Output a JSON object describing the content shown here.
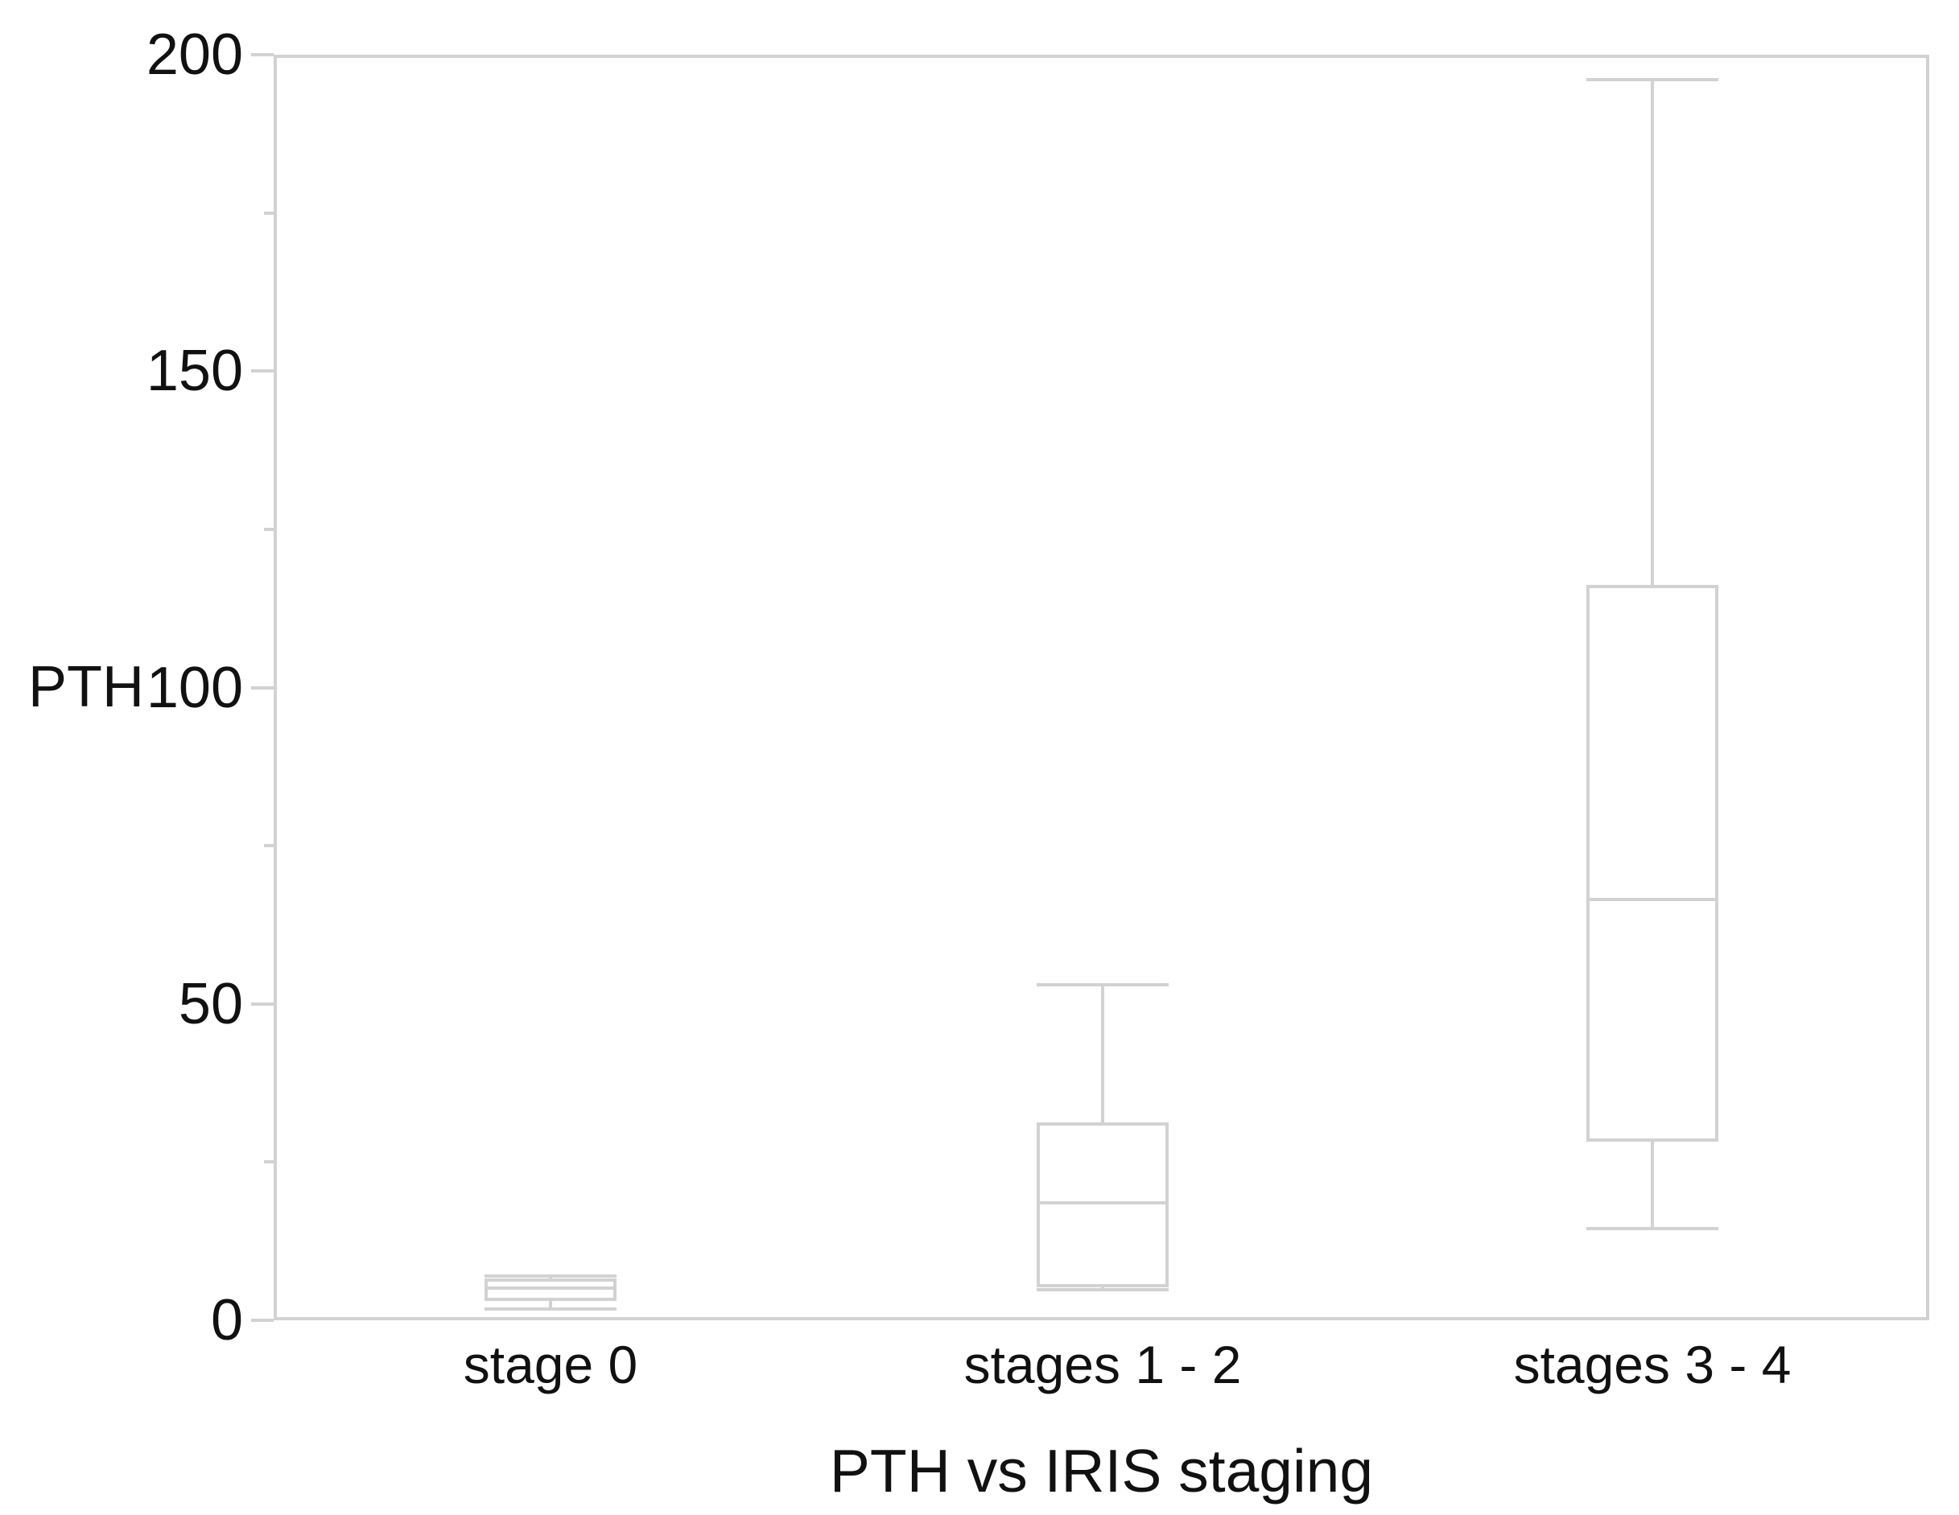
{
  "chart_data": {
    "type": "boxplot",
    "title": "PTH vs IRIS staging",
    "ylabel": "PTH",
    "ylim": [
      0,
      200
    ],
    "y_ticks": [
      "0",
      "50",
      "100",
      "150",
      "200"
    ],
    "y_minor_ticks": [
      25,
      75,
      125,
      175
    ],
    "grid": false,
    "frame": true,
    "legend": "none",
    "categories": [
      "stage 0",
      "stages 1 - 2",
      "stages 3 - 4"
    ],
    "boxes": [
      {
        "label": "stage 0",
        "min": 1.8,
        "q1": 3.3,
        "median": 5.1,
        "q3": 6.4,
        "max": 7
      },
      {
        "label": "stages 1 - 2",
        "min": 4.8,
        "q1": 5.5,
        "median": 18.5,
        "q3": 31,
        "max": 53
      },
      {
        "label": "stages 3 - 4",
        "min": 14.5,
        "q1": 28.5,
        "median": 66.5,
        "q3": 116,
        "max": 196
      }
    ],
    "colors": {
      "line": "#d2d2d2",
      "text": "#111111",
      "background": "#ffffff"
    }
  }
}
